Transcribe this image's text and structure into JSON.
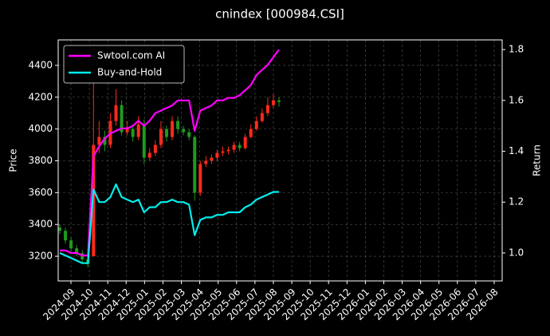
{
  "chart_data": {
    "type": "candlestick",
    "title": "cnindex [000984.CSI]",
    "ylabel": "Price",
    "y2label": "Return",
    "open": [
      3380,
      3360,
      3300,
      3250,
      3220,
      3180,
      3200,
      3900,
      3950,
      3900,
      4050,
      4150,
      3980,
      4000,
      3950,
      4030,
      3820,
      3850,
      3900,
      4000,
      3950,
      4050,
      4000,
      3980,
      3950,
      3600,
      3780,
      3800,
      3820,
      3850,
      3860,
      3870,
      3900,
      3880,
      3950,
      4000,
      4050,
      4100,
      4150,
      4180
    ],
    "high": [
      3400,
      3380,
      3320,
      3270,
      3240,
      3200,
      4300,
      4050,
      3990,
      4100,
      4250,
      4180,
      4050,
      4030,
      4080,
      4060,
      3880,
      3930,
      4050,
      4020,
      4080,
      4080,
      4020,
      4000,
      3960,
      3800,
      3830,
      3840,
      3870,
      3890,
      3890,
      3920,
      3920,
      3970,
      4030,
      4080,
      4130,
      4200,
      4220,
      4200
    ],
    "low": [
      3340,
      3280,
      3230,
      3200,
      3160,
      3130,
      3200,
      3850,
      3860,
      3880,
      4020,
      3960,
      3960,
      3920,
      3930,
      3780,
      3800,
      3830,
      3880,
      3920,
      3930,
      3970,
      3960,
      3930,
      3550,
      3580,
      3760,
      3780,
      3800,
      3830,
      3840,
      3850,
      3860,
      3870,
      3940,
      3990,
      4040,
      4080,
      4130,
      4140
    ],
    "close": [
      3360,
      3300,
      3250,
      3220,
      3180,
      3150,
      3900,
      3950,
      3900,
      4050,
      4150,
      3980,
      4000,
      3950,
      4030,
      3820,
      3850,
      3900,
      4000,
      3950,
      4050,
      4000,
      3980,
      3950,
      3600,
      3780,
      3800,
      3820,
      3850,
      3860,
      3870,
      3900,
      3880,
      3950,
      4000,
      4050,
      4100,
      4150,
      4180,
      4170
    ],
    "up_color": "#ff2a1a",
    "down_color": "#1e9a1e",
    "series": [
      {
        "name": "Swtool.com AI",
        "color": "#ff00ff",
        "axis": "y2",
        "values": [
          1.01,
          1.01,
          1.0,
          1.0,
          0.99,
          0.99,
          1.38,
          1.42,
          1.45,
          1.47,
          1.48,
          1.49,
          1.49,
          1.5,
          1.52,
          1.5,
          1.52,
          1.55,
          1.56,
          1.57,
          1.58,
          1.6,
          1.6,
          1.6,
          1.48,
          1.56,
          1.57,
          1.58,
          1.6,
          1.6,
          1.61,
          1.61,
          1.62,
          1.64,
          1.66,
          1.7,
          1.72,
          1.74,
          1.77,
          1.8
        ]
      },
      {
        "name": "Buy-and-Hold",
        "color": "#00eeee",
        "axis": "y2",
        "values": [
          1.0,
          0.99,
          0.98,
          0.97,
          0.96,
          0.96,
          1.25,
          1.2,
          1.2,
          1.22,
          1.27,
          1.22,
          1.21,
          1.2,
          1.21,
          1.16,
          1.18,
          1.18,
          1.2,
          1.2,
          1.21,
          1.2,
          1.2,
          1.19,
          1.07,
          1.13,
          1.14,
          1.14,
          1.15,
          1.15,
          1.16,
          1.16,
          1.16,
          1.18,
          1.19,
          1.21,
          1.22,
          1.23,
          1.24,
          1.24
        ]
      }
    ],
    "ylim": [
      3045,
      4560
    ],
    "yticks": [
      3200,
      3400,
      3600,
      3800,
      4000,
      4200,
      4400
    ],
    "y2lim": [
      0.89,
      1.838
    ],
    "y2ticks": [
      {
        "value": 1,
        "label": "1.0"
      },
      1.2,
      1.4,
      1.6,
      1.8
    ],
    "xticks": [
      "2024-09",
      "2024-10",
      "2024-11",
      "2024-12",
      "2025-01",
      "2025-02",
      "2025-03",
      "2025-04",
      "2025-05",
      "2025-06",
      "2025-07",
      "2025-08",
      "2025-09",
      "2025-10",
      "2025-11",
      "2025-12",
      "2026-01",
      "2026-02",
      "2026-03",
      "2026-04",
      "2026-05",
      "2026-06",
      "2026-07",
      "2026-08"
    ],
    "grid": true,
    "legend": "upper left"
  }
}
